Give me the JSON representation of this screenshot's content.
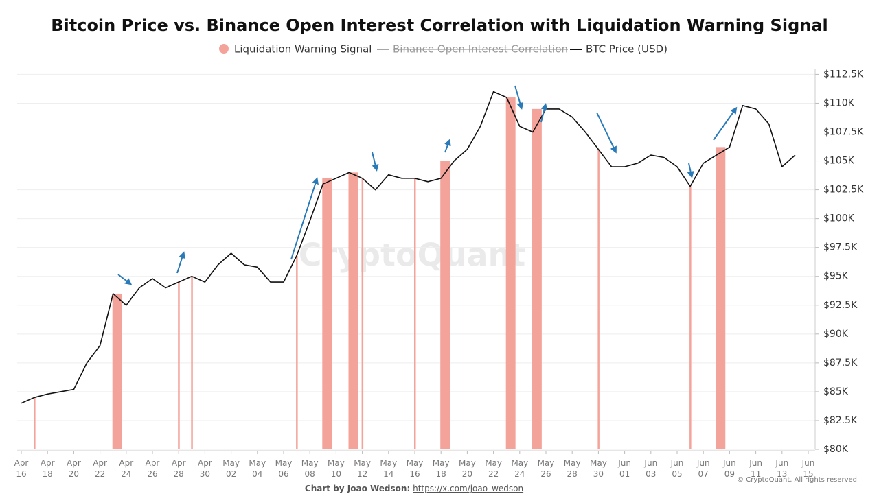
{
  "chart_data": {
    "type": "line",
    "title": "Bitcoin Price vs. Binance Open Interest Correlation with Liquidation Warning Signal",
    "watermark": "CryptoQuant",
    "copyright": "© CryptoQuant. All rights reserved",
    "credit": {
      "label": "Chart by Joao Wedson:",
      "link": "https://x.com/joao_wedson"
    },
    "x": [
      "Apr 16",
      "Apr 17",
      "Apr 18",
      "Apr 19",
      "Apr 20",
      "Apr 21",
      "Apr 22",
      "Apr 23",
      "Apr 24",
      "Apr 25",
      "Apr 26",
      "Apr 27",
      "Apr 28",
      "Apr 29",
      "Apr 30",
      "May 01",
      "May 02",
      "May 03",
      "May 04",
      "May 05",
      "May 06",
      "May 07",
      "May 08",
      "May 09",
      "May 10",
      "May 11",
      "May 12",
      "May 13",
      "May 14",
      "May 15",
      "May 16",
      "May 17",
      "May 18",
      "May 19",
      "May 20",
      "May 21",
      "May 22",
      "May 23",
      "May 24",
      "May 25",
      "May 26",
      "May 27",
      "May 28",
      "May 29",
      "May 30",
      "May 31",
      "Jun 01",
      "Jun 02",
      "Jun 03",
      "Jun 04",
      "Jun 05",
      "Jun 06",
      "Jun 07",
      "Jun 08",
      "Jun 09",
      "Jun 10",
      "Jun 11",
      "Jun 12",
      "Jun 13",
      "Jun 14",
      "Jun 15"
    ],
    "xticks": [
      "Apr 16",
      "Apr 18",
      "Apr 20",
      "Apr 22",
      "Apr 24",
      "Apr 26",
      "Apr 28",
      "Apr 30",
      "May 02",
      "May 04",
      "May 06",
      "May 08",
      "May 10",
      "May 12",
      "May 14",
      "May 16",
      "May 18",
      "May 20",
      "May 22",
      "May 24",
      "May 26",
      "May 28",
      "May 30",
      "Jun 01",
      "Jun 03",
      "Jun 05",
      "Jun 07",
      "Jun 09",
      "Jun 11",
      "Jun 13",
      "Jun 15"
    ],
    "series": [
      {
        "name": "BTC Price (USD)",
        "color": "#111111",
        "values": [
          84000,
          84500,
          84800,
          85000,
          85200,
          87500,
          89000,
          93500,
          92500,
          94000,
          94800,
          94000,
          94500,
          95000,
          94500,
          96000,
          97000,
          96000,
          95800,
          94500,
          94500,
          96800,
          99800,
          103000,
          103500,
          104000,
          103500,
          102500,
          103800,
          103500,
          103500,
          103200,
          103500,
          105000,
          106000,
          108000,
          111000,
          110500,
          108000,
          107500,
          109500,
          109500,
          108800,
          107500,
          106000,
          104500,
          104500,
          104800,
          105500,
          105300,
          104500,
          102800,
          104800,
          105500,
          106200,
          109800,
          109500,
          108200,
          104500,
          105500,
          null
        ]
      }
    ],
    "hidden_series": {
      "name": "Binance Open Interest Correlation",
      "color": "#888888"
    },
    "signals": {
      "name": "Liquidation Warning Signal",
      "color": "#f4a39b",
      "ranges": [
        {
          "start": "Apr 17",
          "end": "Apr 17"
        },
        {
          "start": "Apr 23",
          "end": "Apr 24"
        },
        {
          "start": "Apr 28",
          "end": "Apr 28"
        },
        {
          "start": "Apr 29",
          "end": "Apr 29"
        },
        {
          "start": "May 07",
          "end": "May 07"
        },
        {
          "start": "May 09",
          "end": "May 10"
        },
        {
          "start": "May 11",
          "end": "May 12"
        },
        {
          "start": "May 12",
          "end": "May 12"
        },
        {
          "start": "May 16",
          "end": "May 16"
        },
        {
          "start": "May 18",
          "end": "May 19"
        },
        {
          "start": "May 23",
          "end": "May 24"
        },
        {
          "start": "May 25",
          "end": "May 26"
        },
        {
          "start": "May 30",
          "end": "May 30"
        },
        {
          "start": "Jun 06",
          "end": "Jun 06"
        },
        {
          "start": "Jun 08",
          "end": "Jun 09"
        }
      ]
    },
    "ylim": [
      80000,
      113000
    ],
    "yticks": [
      {
        "value": 80000,
        "label": "$80K"
      },
      {
        "value": 82500,
        "label": "$82.5K"
      },
      {
        "value": 85000,
        "label": "$85K"
      },
      {
        "value": 87500,
        "label": "$87.5K"
      },
      {
        "value": 90000,
        "label": "$90K"
      },
      {
        "value": 92500,
        "label": "$92.5K"
      },
      {
        "value": 95000,
        "label": "$95K"
      },
      {
        "value": 97500,
        "label": "$97.5K"
      },
      {
        "value": 100000,
        "label": "$100K"
      },
      {
        "value": 102500,
        "label": "$102.5K"
      },
      {
        "value": 105000,
        "label": "$105K"
      },
      {
        "value": 107500,
        "label": "$107.5K"
      },
      {
        "value": 110000,
        "label": "$110K"
      },
      {
        "value": 112500,
        "label": "$112.5K"
      }
    ],
    "y_axis_side": "right",
    "grid": true
  }
}
